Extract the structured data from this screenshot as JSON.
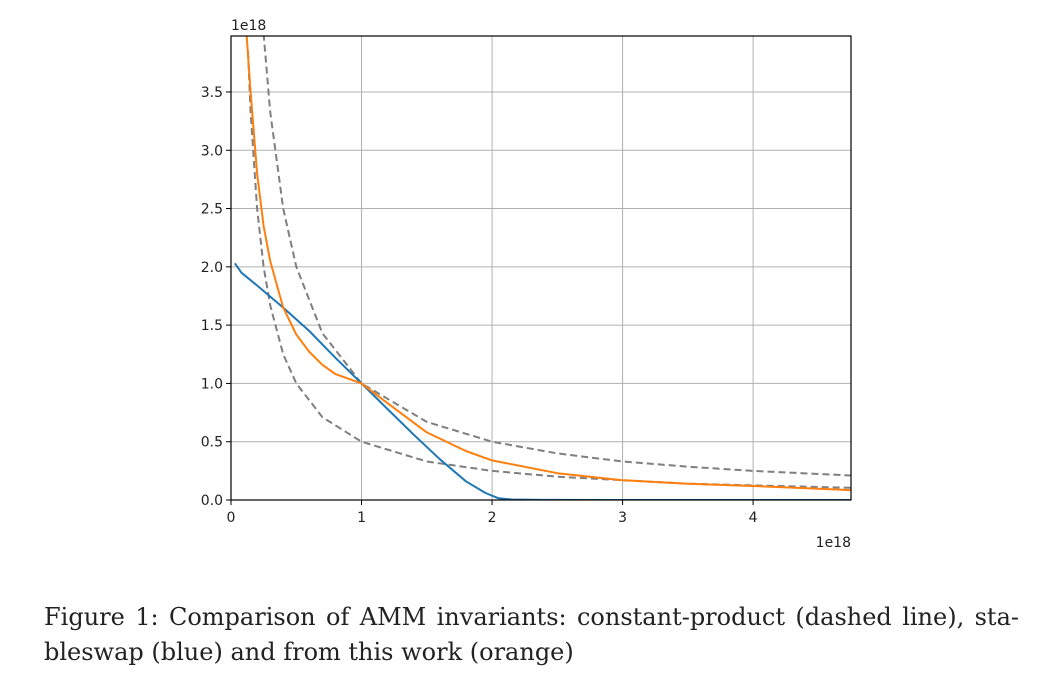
{
  "chart_data": {
    "type": "line",
    "x_label": "",
    "y_label": "",
    "xlim": [
      0,
      4.75
    ],
    "ylim": [
      0,
      3.98
    ],
    "x_ticks": [
      "0",
      "1",
      "2",
      "3",
      "4"
    ],
    "y_ticks": [
      "0.0",
      "0.5",
      "1.0",
      "1.5",
      "2.0",
      "2.5",
      "3.0",
      "3.5"
    ],
    "x_offset_label": "1e18",
    "y_offset_label": "1e18",
    "grid": true,
    "series": [
      {
        "style": "dashed",
        "color": "#7f7f7f",
        "x": [
          0.13,
          0.15,
          0.2,
          0.25,
          0.3,
          0.4,
          0.5,
          0.7,
          1.0,
          1.5,
          2.0,
          2.5,
          3.0,
          3.5,
          4.0,
          4.75
        ],
        "y": [
          3.85,
          3.33,
          2.5,
          2.0,
          1.67,
          1.25,
          1.0,
          0.71,
          0.5,
          0.33,
          0.25,
          0.2,
          0.17,
          0.14,
          0.125,
          0.105
        ]
      },
      {
        "style": "dashed",
        "color": "#7f7f7f",
        "x": [
          0.25,
          0.3,
          0.4,
          0.5,
          0.7,
          1.0,
          1.5,
          2.0,
          2.5,
          3.0,
          3.5,
          4.0,
          4.75
        ],
        "y": [
          4.0,
          3.33,
          2.5,
          2.0,
          1.43,
          1.0,
          0.67,
          0.5,
          0.4,
          0.33,
          0.286,
          0.25,
          0.21
        ]
      },
      {
        "style": "solid",
        "color": "#1f77b4",
        "x": [
          0.03,
          0.08,
          0.2,
          0.4,
          0.6,
          0.8,
          1.0,
          1.2,
          1.4,
          1.6,
          1.8,
          1.95,
          2.05,
          2.15,
          2.4,
          3.0,
          4.0,
          4.75
        ],
        "y": [
          2.03,
          1.95,
          1.84,
          1.65,
          1.45,
          1.22,
          1.0,
          0.78,
          0.56,
          0.35,
          0.16,
          0.06,
          0.015,
          0.004,
          0.001,
          0.0,
          0.0,
          0.0
        ]
      },
      {
        "style": "solid",
        "color": "#ff7f0e",
        "x": [
          0.12,
          0.15,
          0.2,
          0.25,
          0.3,
          0.4,
          0.5,
          0.6,
          0.7,
          0.8,
          1.0,
          1.2,
          1.5,
          1.8,
          2.0,
          2.5,
          3.0,
          3.5,
          4.0,
          4.75
        ],
        "y": [
          3.98,
          3.5,
          2.8,
          2.35,
          2.05,
          1.65,
          1.42,
          1.27,
          1.16,
          1.08,
          1.0,
          0.83,
          0.58,
          0.42,
          0.34,
          0.23,
          0.17,
          0.14,
          0.12,
          0.085
        ]
      }
    ]
  },
  "caption": {
    "line1": "Figure 1: Comparison of AMM invariants: constant-product (dashed line), sta-",
    "line2": "bleswap (blue) and from this work (orange)"
  }
}
